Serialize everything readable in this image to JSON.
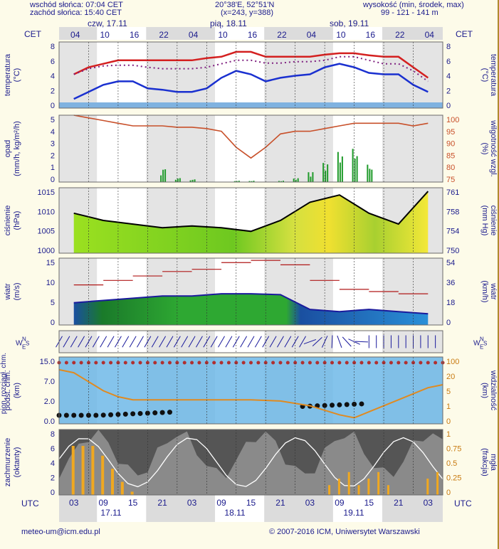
{
  "header": {
    "sunrise": "wschód słońca: 07:04 CET",
    "sunset": "zachód słońca: 15:40 CET",
    "coords": "20°38'E, 52°51'N",
    "grid": "(x=243, y=388)",
    "height_label": "wysokość (min, środek, max)",
    "height_values": "99 - 121 - 141 m"
  },
  "top_axis": {
    "tz": "CET",
    "hours": [
      "04",
      "10",
      "16",
      "22",
      "04",
      "10",
      "16",
      "22",
      "04",
      "10",
      "16",
      "22",
      "04"
    ],
    "days": [
      "czw, 17.11",
      "pią, 18.11",
      "sob, 19.11"
    ]
  },
  "bottom_axis": {
    "tz": "UTC",
    "hours": [
      "03",
      "09",
      "15",
      "21",
      "03",
      "09",
      "15",
      "21",
      "03",
      "09",
      "15",
      "21",
      "03"
    ],
    "days": [
      "17.11",
      "18.11",
      "19.11"
    ]
  },
  "panels": {
    "temp": {
      "left_label": "temperatura",
      "left_unit": "(°C)",
      "right_label": "temperatura",
      "right_unit": "(°C)",
      "ticks_l": [
        "8",
        "6",
        "4",
        "2",
        "0"
      ],
      "ticks_r": [
        "8",
        "6",
        "4",
        "2",
        "0"
      ]
    },
    "precip": {
      "left_label": "opad",
      "left_unit": "(mm/h, kg/m²/h)",
      "right_label": "wilgotność wzgl.",
      "right_unit": "(%)",
      "ticks_l": [
        "5",
        "4",
        "3",
        "2",
        "1",
        "0"
      ],
      "ticks_r": [
        "100",
        "95",
        "90",
        "85",
        "80",
        "75"
      ]
    },
    "pressure": {
      "left_label": "ciśnienie",
      "left_unit": "(hPa)",
      "right_label": "ciśnienie",
      "right_unit": "(mm Hg)",
      "ticks_l": [
        "1015",
        "1010",
        "1005",
        "1000"
      ],
      "ticks_r": [
        "761",
        "758",
        "754",
        "750"
      ]
    },
    "wind": {
      "left_label": "wiatr",
      "left_unit": "(m/s)",
      "right_label": "wiatr",
      "right_unit": "(km/h)",
      "ticks_l": [
        "15",
        "10",
        "5",
        "0"
      ],
      "ticks_r": [
        "54",
        "36",
        "18",
        "0"
      ]
    },
    "dir": {
      "compass": "W N E S"
    },
    "vis": {
      "left_label": "podst. chm.",
      "left_label2": "pion. rozciągł. chm.",
      "left_unit": "(km)",
      "right_label": "widzialność",
      "right_unit": "(km)",
      "ticks_l": [
        "15.0",
        "7.0",
        "2.0",
        "0.0"
      ],
      "ticks_r": [
        "100",
        "20",
        "5",
        "1",
        "0"
      ]
    },
    "cloud": {
      "left_label": "zachmurzenie",
      "left_unit": "(oktanty)",
      "right_label": "mgła",
      "right_unit": "(frakcja)",
      "ticks_l": [
        "8",
        "6",
        "4",
        "2",
        "0"
      ],
      "ticks_r": [
        "1",
        "0.75",
        "0.5",
        "0.25",
        "0"
      ]
    }
  },
  "footer": {
    "email": "meteo-um@icm.edu.pl",
    "copyright": "© 2007-2016 ICM, Uniwersytet Warszawski"
  },
  "chart_data": [
    {
      "type": "line",
      "x_hours_utc": [
        0,
        3,
        6,
        9,
        12,
        15,
        18,
        21,
        24,
        27,
        30,
        33,
        36,
        39,
        42,
        45,
        48,
        51,
        54,
        57,
        60,
        63,
        66,
        69,
        72
      ],
      "series": [
        {
          "name": "max",
          "color": "#d42020",
          "values": [
            4,
            5,
            5.5,
            6,
            6,
            6,
            6,
            6,
            6,
            6.3,
            6.5,
            7.2,
            7.2,
            6.5,
            6.5,
            6.5,
            6.5,
            6.8,
            7,
            7,
            6.7,
            6.5,
            6.5,
            5,
            3.5
          ]
        },
        {
          "name": "mean",
          "color": "#7f2080",
          "values": [
            4,
            4.8,
            5.2,
            5.3,
            5.3,
            5,
            4.8,
            4.8,
            4.8,
            5,
            5.5,
            6,
            6,
            5.6,
            5.6,
            5.8,
            5.8,
            6,
            6.5,
            6.5,
            6,
            5.5,
            5.5,
            4.5,
            3
          ]
        },
        {
          "name": "min",
          "color": "#1a30d0",
          "values": [
            0.5,
            1.5,
            2.5,
            3,
            3,
            2,
            1.8,
            1.5,
            1.5,
            2,
            3.5,
            4.5,
            4,
            3,
            3.5,
            3.8,
            4,
            5,
            5.5,
            5,
            4.2,
            4,
            4,
            2.5,
            1.5
          ]
        }
      ],
      "ylim": [
        0,
        8
      ]
    },
    {
      "type": "bar",
      "name": "opad",
      "x_hours_utc": [
        18,
        21,
        24,
        33,
        36,
        42,
        45,
        48,
        51,
        54,
        57,
        60
      ],
      "values": [
        1,
        0.3,
        0.2,
        0.1,
        0.1,
        0.1,
        0.3,
        0.8,
        1.5,
        2.3,
        2.5,
        1.3
      ],
      "ylim": [
        0,
        5
      ],
      "humidity": {
        "values": [
          100,
          99,
          98,
          97,
          96,
          96,
          96,
          95.5,
          95.5,
          95,
          94,
          88,
          84,
          88,
          93,
          94,
          94,
          95,
          96,
          97,
          97,
          97,
          97,
          96,
          97
        ],
        "ylim": [
          75,
          100
        ]
      }
    },
    {
      "type": "area",
      "name": "ciśnienie",
      "x_hours_utc": [
        0,
        6,
        12,
        18,
        24,
        30,
        36,
        42,
        48,
        54,
        60,
        66,
        72
      ],
      "values": [
        1011,
        1009,
        1008,
        1007,
        1007.5,
        1007,
        1006,
        1009,
        1014,
        1016,
        1011,
        1008,
        1017
      ],
      "ylim": [
        1000,
        1018
      ]
    },
    {
      "type": "area",
      "name": "wiatr",
      "x_hours_utc": [
        0,
        6,
        12,
        18,
        24,
        30,
        36,
        42,
        48,
        54,
        60,
        66,
        72
      ],
      "values": [
        5,
        5.5,
        6,
        6.5,
        6.5,
        7,
        7,
        6.8,
        3.5,
        3,
        3.5,
        3,
        2.5
      ],
      "gusts": [
        9,
        10,
        11,
        12,
        12.5,
        14,
        14.5,
        13.5,
        10,
        8,
        7.5,
        7,
        5
      ],
      "ylim": [
        0,
        15
      ]
    },
    {
      "type": "line",
      "name": "widzialność",
      "ylim": [
        0,
        100
      ]
    },
    {
      "type": "area",
      "name": "zachmurzenie",
      "ylim": [
        0,
        8
      ],
      "fog_values": [
        0.75,
        0.75,
        0.75,
        0.6,
        0.4,
        0.2,
        0.05
      ]
    }
  ]
}
